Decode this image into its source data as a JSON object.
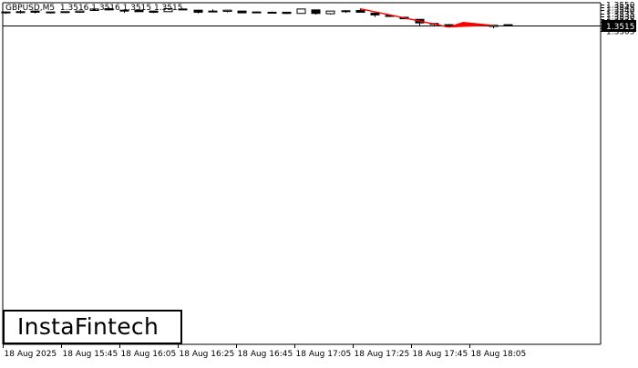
{
  "header": {
    "symbol": "GBPUSD,M5",
    "ohlc": "1.3516 1.3516 1.3515 1.3515"
  },
  "logo": {
    "text": "InstaFintech"
  },
  "chart_data": {
    "type": "candlestick",
    "symbol": "GBPUSD",
    "timeframe": "M5",
    "y_ticks": [
      "1.3550",
      "1.3545",
      "1.3540",
      "1.3535",
      "1.3530",
      "1.3525",
      "1.3520",
      "1.3515",
      "1.3510",
      "1.3505"
    ],
    "x_ticks": [
      "18 Aug 2025",
      "18 Aug 15:45",
      "18 Aug 16:05",
      "18 Aug 16:25",
      "18 Aug 16:45",
      "18 Aug 17:05",
      "18 Aug 17:25",
      "18 Aug 17:45",
      "18 Aug 18:05"
    ],
    "current_price": 1.3515,
    "current_price_label": "1.3515",
    "ylim": [
      1.35,
      1.355
    ],
    "candles": [
      {
        "o": 1.35375,
        "h": 1.35385,
        "l": 1.35345,
        "c": 1.35375
      },
      {
        "o": 1.3538,
        "h": 1.35405,
        "l": 1.3535,
        "c": 1.3537
      },
      {
        "o": 1.3539,
        "h": 1.3539,
        "l": 1.3535,
        "c": 1.3537
      },
      {
        "o": 1.35375,
        "h": 1.35375,
        "l": 1.3535,
        "c": 1.3536
      },
      {
        "o": 1.3537,
        "h": 1.3538,
        "l": 1.3536,
        "c": 1.3538
      },
      {
        "o": 1.3537,
        "h": 1.3539,
        "l": 1.3536,
        "c": 1.3539
      },
      {
        "o": 1.354,
        "h": 1.35425,
        "l": 1.354,
        "c": 1.35425
      },
      {
        "o": 1.3543,
        "h": 1.3545,
        "l": 1.354,
        "c": 1.3541
      },
      {
        "o": 1.35405,
        "h": 1.35405,
        "l": 1.3536,
        "c": 1.35395
      },
      {
        "o": 1.35405,
        "h": 1.3541,
        "l": 1.3538,
        "c": 1.3538
      },
      {
        "o": 1.3539,
        "h": 1.35395,
        "l": 1.35355,
        "c": 1.3537
      },
      {
        "o": 1.3538,
        "h": 1.3543,
        "l": 1.3538,
        "c": 1.3543
      },
      {
        "o": 1.35425,
        "h": 1.3543,
        "l": 1.35405,
        "c": 1.35415
      },
      {
        "o": 1.35405,
        "h": 1.35405,
        "l": 1.3535,
        "c": 1.3537
      },
      {
        "o": 1.3538,
        "h": 1.3542,
        "l": 1.3538,
        "c": 1.3539
      },
      {
        "o": 1.35385,
        "h": 1.3541,
        "l": 1.3537,
        "c": 1.35405
      },
      {
        "o": 1.3539,
        "h": 1.3539,
        "l": 1.3536,
        "c": 1.3536
      },
      {
        "o": 1.3537,
        "h": 1.35385,
        "l": 1.3536,
        "c": 1.35375
      },
      {
        "o": 1.3537,
        "h": 1.3538,
        "l": 1.3536,
        "c": 1.3536
      },
      {
        "o": 1.3537,
        "h": 1.3537,
        "l": 1.3534,
        "c": 1.3535
      },
      {
        "o": 1.3535,
        "h": 1.3543,
        "l": 1.3535,
        "c": 1.35425
      },
      {
        "o": 1.3541,
        "h": 1.3541,
        "l": 1.3533,
        "c": 1.3535
      },
      {
        "o": 1.35345,
        "h": 1.3539,
        "l": 1.3533,
        "c": 1.3539
      },
      {
        "o": 1.35395,
        "h": 1.35405,
        "l": 1.3536,
        "c": 1.3538
      },
      {
        "o": 1.354,
        "h": 1.3543,
        "l": 1.3537,
        "c": 1.3537
      },
      {
        "o": 1.35355,
        "h": 1.35355,
        "l": 1.3529,
        "c": 1.35325
      },
      {
        "o": 1.35315,
        "h": 1.35315,
        "l": 1.3529,
        "c": 1.353
      },
      {
        "o": 1.35285,
        "h": 1.35295,
        "l": 1.3526,
        "c": 1.3526
      },
      {
        "o": 1.3525,
        "h": 1.3525,
        "l": 1.3514,
        "c": 1.3519
      },
      {
        "o": 1.3518,
        "h": 1.3518,
        "l": 1.3513,
        "c": 1.3517
      },
      {
        "o": 1.3516,
        "h": 1.3517,
        "l": 1.3515,
        "c": 1.3515
      },
      {
        "o": 1.3514,
        "h": 1.3517,
        "l": 1.3514,
        "c": 1.3517
      },
      {
        "o": 1.3516,
        "h": 1.3517,
        "l": 1.3513,
        "c": 1.3514
      },
      {
        "o": 1.3513,
        "h": 1.3515,
        "l": 1.351,
        "c": 1.3515
      },
      {
        "o": 1.3516,
        "h": 1.3516,
        "l": 1.3515,
        "c": 1.3515
      }
    ],
    "annotations": {
      "flagpole": {
        "from": {
          "candle": 24,
          "price": 1.3543
        },
        "to": {
          "candle": 30,
          "price": 1.3512
        },
        "color": "#ff0000"
      },
      "pennant": {
        "points": [
          {
            "candle": 30,
            "price": 1.3512
          },
          {
            "candle": 31,
            "price": 1.352
          },
          {
            "candle": 33,
            "price": 1.3515
          }
        ],
        "color": "#ff0000"
      }
    },
    "grid": false,
    "colors": {
      "bull_body": "#ffffff",
      "bear_body": "#000000",
      "outline": "#000000",
      "pattern": "#ff0000",
      "price_line": "#000000"
    }
  }
}
